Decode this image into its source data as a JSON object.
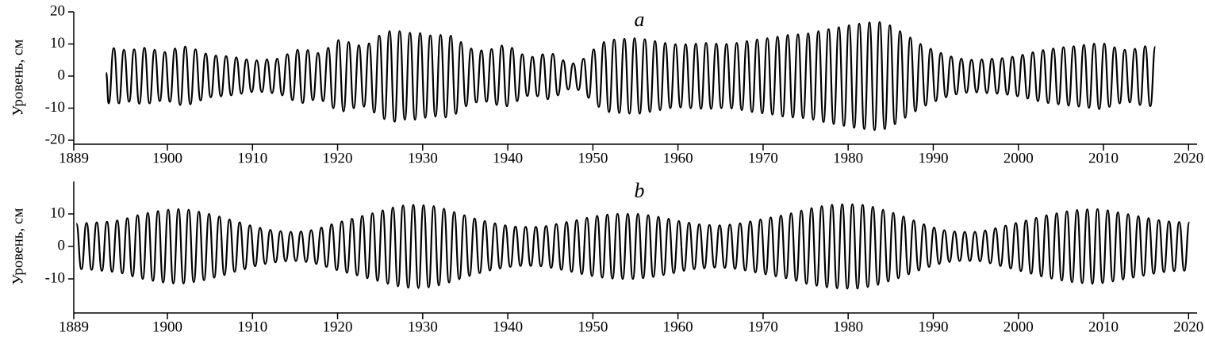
{
  "chart_data": [
    {
      "type": "line",
      "title": "a",
      "ylabel": "Уровень, см",
      "color": "#000000",
      "xlim": [
        1889,
        2021
      ],
      "xticks": [
        1889,
        1900,
        1910,
        1920,
        1930,
        1940,
        1950,
        1960,
        1970,
        1980,
        1990,
        2000,
        2010,
        2020
      ],
      "ylim": [
        -20,
        20
      ],
      "yticks": [
        -20,
        -10,
        0,
        10,
        20
      ],
      "x": [
        1892.8,
        1893.1,
        1893.7,
        1894.3,
        1894.9,
        1895.5,
        1896.1,
        1896.7,
        1897.3,
        1897.9,
        1898.5,
        1899.1,
        1899.7,
        1900.3,
        1900.9,
        1901.5,
        1902.1,
        1902.7,
        1903.3,
        1903.9,
        1904.5,
        1905.1,
        1905.7,
        1906.3,
        1906.9,
        1907.5,
        1908.1,
        1908.7,
        1909.3,
        1909.9,
        1910.5,
        1911.1,
        1911.7,
        1912.3,
        1912.9,
        1913.5,
        1914.1,
        1914.7,
        1915.3,
        1915.9,
        1916.5,
        1917.1,
        1917.7,
        1918.3,
        1918.9,
        1919.5,
        1920.1,
        1920.7,
        1921.3,
        1921.9,
        1922.5,
        1923.1,
        1923.7,
        1924.3,
        1924.9,
        1925.5,
        1926.1,
        1926.7,
        1927.3,
        1927.9,
        1928.5,
        1929.1,
        1929.7,
        1930.3,
        1930.9,
        1931.5,
        1932.1,
        1932.7,
        1933.3,
        1933.9,
        1934.5,
        1935.1,
        1935.7,
        1936.3,
        1936.9,
        1937.5,
        1938.1,
        1938.7,
        1939.3,
        1939.9,
        1940.5,
        1941.1,
        1941.7,
        1942.3,
        1942.9,
        1943.5,
        1944.1,
        1944.7,
        1945.3,
        1945.9,
        1946.5,
        1947.1,
        1947.7,
        1948.3,
        1948.9,
        1949.5,
        1950.1,
        1950.7,
        1951.3,
        1951.9,
        1952.5,
        1953.1,
        1953.7,
        1954.3,
        1954.9,
        1955.5,
        1956.1,
        1956.7,
        1957.3,
        1957.9,
        1958.5,
        1959.1,
        1959.7,
        1960.3,
        1960.9,
        1961.5,
        1962.1,
        1962.7,
        1963.3,
        1963.9,
        1964.5,
        1965.1,
        1965.7,
        1966.3,
        1966.9,
        1967.5,
        1968.1,
        1968.7,
        1969.3,
        1969.9,
        1970.5,
        1971.1,
        1971.7,
        1972.3,
        1972.9,
        1973.5,
        1974.1,
        1974.7,
        1975.3,
        1975.9,
        1976.5,
        1977.1,
        1977.7,
        1978.3,
        1978.9,
        1979.5,
        1980.1,
        1980.7,
        1981.3,
        1981.9,
        1982.5,
        1983.1,
        1983.7,
        1984.3,
        1984.9,
        1985.5,
        1986.1,
        1986.7,
        1987.3,
        1987.9,
        1988.5,
        1989.1,
        1989.7,
        1990.3,
        1990.9,
        1991.5,
        1992.1,
        1992.7,
        1993.3,
        1993.9,
        1994.5,
        1995.1,
        1995.7,
        1996.3,
        1996.9,
        1997.5,
        1998.1,
        1998.7,
        1999.3,
        1999.9,
        2000.5,
        2001.1,
        2001.7,
        2002.3,
        2002.9,
        2003.5,
        2004.1,
        2004.7,
        2005.3,
        2005.9,
        2006.5,
        2007.1,
        2007.7,
        2008.3,
        2008.9,
        2009.5,
        2010.1,
        2010.7,
        2011.3,
        2011.9,
        2012.5,
        2013.1,
        2013.7,
        2014.3,
        2014.9,
        2015.5,
        2016.1
      ],
      "values": [
        1,
        -8.5,
        8.7,
        -8.5,
        8.2,
        -8,
        8.3,
        -8.6,
        8.8,
        -8.5,
        8.2,
        -7.8,
        7.5,
        -8,
        8.6,
        -9,
        9.2,
        -8.8,
        8.3,
        -7.6,
        7,
        -6.6,
        6.4,
        -6.3,
        6.2,
        -6,
        5.8,
        -5.5,
        5.2,
        -5,
        4.9,
        -5,
        5.2,
        -5.3,
        5.4,
        -6,
        6.8,
        -7.5,
        8.2,
        -8.4,
        8.1,
        -7.5,
        7.2,
        -7.8,
        8.8,
        -10,
        11.2,
        -11,
        10.6,
        -10,
        9.6,
        -9.5,
        10.2,
        -11.4,
        12.6,
        -13.4,
        14,
        -14.2,
        14,
        -13.6,
        13.5,
        -13.6,
        13.4,
        -13,
        12.7,
        -12.6,
        12.8,
        -12.9,
        12.6,
        -11.8,
        10.6,
        -9.4,
        8.6,
        -8.2,
        8,
        -8,
        8.4,
        -9,
        9.5,
        -9.4,
        8.8,
        -7.8,
        6.8,
        -6.2,
        6,
        -6.3,
        6.8,
        -7.2,
        6.9,
        -6,
        4.9,
        -4.2,
        4,
        -4.4,
        5.4,
        -6.8,
        8.3,
        -9.6,
        10.6,
        -11.2,
        11.4,
        -11.5,
        11.6,
        -11.7,
        11.8,
        -11.7,
        11.5,
        -11.2,
        10.9,
        -10.6,
        10.3,
        -10,
        9.9,
        -9.8,
        9.9,
        -10,
        10.1,
        -10.2,
        10.3,
        -10.2,
        10.1,
        -10,
        10,
        -10.1,
        10.3,
        -10.6,
        10.9,
        -11.2,
        11.4,
        -11.6,
        11.8,
        -12,
        12.3,
        -12.6,
        12.8,
        -12.9,
        13,
        -13.1,
        13.3,
        -13.6,
        14,
        -14.3,
        14.6,
        -14.9,
        15.2,
        -15.5,
        15.8,
        -16.1,
        16.3,
        -16.5,
        16.7,
        -16.8,
        16.8,
        -16.5,
        15.8,
        -15,
        14,
        -13,
        12,
        -11,
        10,
        -9.2,
        8.5,
        -7.8,
        7.2,
        -6.6,
        6.1,
        -5.7,
        5.4,
        -5.2,
        5.1,
        -5.1,
        5.2,
        -5.3,
        5.4,
        -5.5,
        5.6,
        -5.8,
        6,
        -6.3,
        6.6,
        -7,
        7.4,
        -7.8,
        8.1,
        -8.4,
        8.6,
        -8.8,
        9,
        -9.2,
        9.3,
        -9.5,
        9.7,
        -9.9,
        10.1,
        -10.3,
        10.1,
        -9.6,
        9,
        -8.5,
        8.2,
        -8.2,
        8.5,
        -9,
        9.3,
        -9.4,
        9.1
      ]
    },
    {
      "type": "line",
      "title": "b",
      "ylabel": "Уровень, см",
      "color": "#000000",
      "xlim": [
        1889,
        2021
      ],
      "xticks": [
        1889,
        1900,
        1910,
        1920,
        1930,
        1940,
        1950,
        1960,
        1970,
        1980,
        1990,
        2000,
        2010,
        2020
      ],
      "ylim": [
        -20,
        20
      ],
      "yticks": [
        -10,
        0,
        10
      ],
      "x": [
        1889.3,
        1889.9,
        1890.5,
        1891.1,
        1891.7,
        1892.3,
        1892.9,
        1893.5,
        1894.1,
        1894.7,
        1895.3,
        1895.9,
        1896.5,
        1897.1,
        1897.7,
        1898.3,
        1898.9,
        1899.5,
        1900.1,
        1900.7,
        1901.3,
        1901.9,
        1902.5,
        1903.1,
        1903.7,
        1904.3,
        1904.9,
        1905.5,
        1906.1,
        1906.7,
        1907.3,
        1907.9,
        1908.5,
        1909.1,
        1909.7,
        1910.3,
        1910.9,
        1911.5,
        1912.1,
        1912.7,
        1913.3,
        1913.9,
        1914.5,
        1915.1,
        1915.7,
        1916.3,
        1916.9,
        1917.5,
        1918.1,
        1918.7,
        1919.3,
        1919.9,
        1920.5,
        1921.1,
        1921.7,
        1922.3,
        1922.9,
        1923.5,
        1924.1,
        1924.7,
        1925.3,
        1925.9,
        1926.5,
        1927.1,
        1927.7,
        1928.3,
        1928.9,
        1929.5,
        1930.1,
        1930.7,
        1931.3,
        1931.9,
        1932.5,
        1933.1,
        1933.7,
        1934.3,
        1934.9,
        1935.5,
        1936.1,
        1936.7,
        1937.3,
        1937.9,
        1938.5,
        1939.1,
        1939.7,
        1940.3,
        1940.9,
        1941.5,
        1942.1,
        1942.7,
        1943.3,
        1943.9,
        1944.5,
        1945.1,
        1945.7,
        1946.3,
        1946.9,
        1947.5,
        1948.1,
        1948.7,
        1949.3,
        1949.9,
        1950.5,
        1951.1,
        1951.7,
        1952.3,
        1952.9,
        1953.5,
        1954.1,
        1954.7,
        1955.3,
        1955.9,
        1956.5,
        1957.1,
        1957.7,
        1958.3,
        1958.9,
        1959.5,
        1960.1,
        1960.7,
        1961.3,
        1961.9,
        1962.5,
        1963.1,
        1963.7,
        1964.3,
        1964.9,
        1965.5,
        1966.1,
        1966.7,
        1967.3,
        1967.9,
        1968.5,
        1969.1,
        1969.7,
        1970.3,
        1970.9,
        1971.5,
        1972.1,
        1972.7,
        1973.3,
        1973.9,
        1974.5,
        1975.1,
        1975.7,
        1976.3,
        1976.9,
        1977.5,
        1978.1,
        1978.7,
        1979.3,
        1979.9,
        1980.5,
        1981.1,
        1981.7,
        1982.3,
        1982.9,
        1983.5,
        1984.1,
        1984.7,
        1985.3,
        1985.9,
        1986.5,
        1987.1,
        1987.7,
        1988.3,
        1988.9,
        1989.5,
        1990.1,
        1990.7,
        1991.3,
        1991.9,
        1992.5,
        1993.1,
        1993.7,
        1994.3,
        1994.9,
        1995.5,
        1996.1,
        1996.7,
        1997.3,
        1997.9,
        1998.5,
        1999.1,
        1999.7,
        2000.3,
        2000.9,
        2001.5,
        2002.1,
        2002.7,
        2003.3,
        2003.9,
        2004.5,
        2005.1,
        2005.7,
        2006.3,
        2006.9,
        2007.5,
        2008.1,
        2008.7,
        2009.3,
        2009.9,
        2010.5,
        2011.1,
        2011.7,
        2012.3,
        2012.9,
        2013.5,
        2014.1,
        2014.7,
        2015.3,
        2015.9,
        2016.5,
        2017.1,
        2017.7,
        2018.3,
        2018.9,
        2019.5,
        2020.1
      ],
      "values": [
        7,
        -7,
        7.2,
        -7.2,
        7.4,
        -7.5,
        7.6,
        -7.8,
        8,
        -8.3,
        8.7,
        -9.2,
        9.6,
        -10,
        10.3,
        -10.6,
        10.9,
        -11.1,
        11.3,
        -11.4,
        11.5,
        -11.4,
        11.3,
        -11,
        10.7,
        -10.4,
        10,
        -9.6,
        9.2,
        -8.8,
        8.3,
        -7.8,
        7.4,
        -7,
        6.5,
        -6.1,
        5.7,
        -5.4,
        5.1,
        -4.9,
        4.7,
        -4.6,
        4.5,
        -4.5,
        4.6,
        -4.8,
        5,
        -5.4,
        5.8,
        -6.3,
        6.8,
        -7.3,
        7.7,
        -8.1,
        8.5,
        -8.9,
        9.4,
        -9.8,
        10.2,
        -10.6,
        11.1,
        -11.5,
        12,
        -12.3,
        12.6,
        -12.7,
        12.8,
        -12.8,
        12.7,
        -12.6,
        12.4,
        -12,
        11.6,
        -11.1,
        10.6,
        -10.1,
        9.6,
        -9.1,
        8.6,
        -8.2,
        7.8,
        -7.4,
        7.1,
        -6.8,
        6.5,
        -6.3,
        6.1,
        -6,
        6,
        -6,
        6,
        -6.1,
        6.3,
        -6.6,
        6.9,
        -7.2,
        7.5,
        -7.8,
        8.1,
        -8.5,
        8.8,
        -9.1,
        9.4,
        -9.6,
        9.8,
        -9.9,
        10,
        -10,
        10,
        -10,
        10,
        -9.8,
        9.6,
        -9.4,
        9.1,
        -8.8,
        8.5,
        -8.2,
        7.8,
        -7.5,
        7.3,
        -7,
        6.8,
        -6.7,
        6.6,
        -6.5,
        6.5,
        -6.6,
        6.7,
        -6.9,
        7.1,
        -7.4,
        7.7,
        -8,
        8.3,
        -8.6,
        8.9,
        -9.2,
        9.5,
        -9.8,
        10.2,
        -10.6,
        11,
        -11.5,
        11.8,
        -12.1,
        12.4,
        -12.6,
        12.8,
        -12.9,
        13,
        -13,
        13,
        -13,
        12.8,
        -12.5,
        12.2,
        -11.8,
        11.3,
        -10.8,
        10.3,
        -9.8,
        9.2,
        -8.6,
        8,
        -7.4,
        6.8,
        -6.3,
        5.8,
        -5.4,
        5,
        -4.8,
        4.6,
        -4.5,
        4.5,
        -4.5,
        4.5,
        -4.6,
        4.9,
        -5.2,
        5.6,
        -6,
        6.4,
        -6.8,
        7.2,
        -7.6,
        8,
        -8.4,
        8.8,
        -9.2,
        9.6,
        -9.9,
        10.2,
        -10.5,
        10.8,
        -11,
        11.2,
        -11.3,
        11.4,
        -11.5,
        11.5,
        -11.3,
        11.1,
        -10.8,
        10.5,
        -10.2,
        9.9,
        -9.6,
        9.3,
        -9,
        8.7,
        -8.4,
        8.1,
        -7.9,
        7.7,
        -7.6,
        7.5,
        -7.5,
        7.4
      ]
    }
  ]
}
